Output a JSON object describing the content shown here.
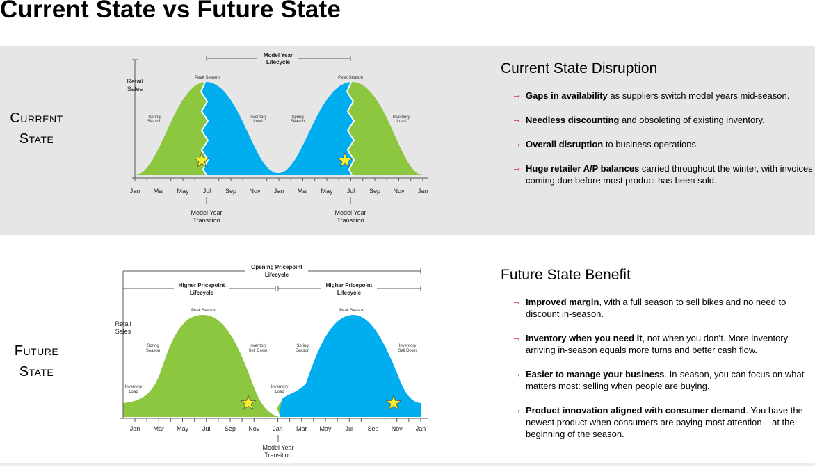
{
  "page": {
    "title": "Current State vs Future State"
  },
  "current": {
    "label_line1": "Current",
    "label_line2": "State",
    "chart": {
      "retail_sales_line1": "Retail",
      "retail_sales_line2": "Sales",
      "lifecycle_line1": "Model Year",
      "lifecycle_line2": "Lifecycle",
      "peak1": "Peak Season",
      "peak2": "Peak Season",
      "spring1_l1": "Spring",
      "spring1_l2": "Season",
      "inventory1_l1": "Inventory",
      "inventory1_l2": "Load",
      "spring2_l1": "Spring",
      "spring2_l2": "Season",
      "inventory2_l1": "Inventory",
      "inventory2_l2": "Load",
      "months": [
        "Jan",
        "Mar",
        "May",
        "Jul",
        "Sep",
        "Nov",
        "Jan",
        "Mar",
        "May",
        "Jul",
        "Sep",
        "Nov",
        "Jan"
      ],
      "transition1_l1": "Model Year",
      "transition1_l2": "Transition",
      "transition2_l1": "Model Year",
      "transition2_l2": "Transition"
    },
    "panel": {
      "heading": "Current State Disruption",
      "bullets": [
        {
          "bold": "Gaps in availability",
          "text": " as suppliers switch model years mid-season."
        },
        {
          "bold": "Needless discounting",
          "text": " and obsoleting of existing inventory."
        },
        {
          "bold": "Overall disruption",
          "text": " to business operations."
        },
        {
          "bold": "Huge retailer A/P balances",
          "text": " carried throughout the winter, with invoices coming due before most product has been sold."
        }
      ]
    }
  },
  "future": {
    "label_line1": "Future",
    "label_line2": "State",
    "chart": {
      "retail_sales_line1": "Retail",
      "retail_sales_line2": "Sales",
      "opening_line1": "Opening Pricepoint",
      "opening_line2": "Lifecycle",
      "higher1_line1": "Higher Pricepoint",
      "higher1_line2": "Lifecycle",
      "higher2_line1": "Higher Pricepoint",
      "higher2_line2": "Lifecycle",
      "peak1": "Peak Season",
      "peak2": "Peak Season",
      "spring1_l1": "Spring",
      "spring1_l2": "Season",
      "selldown1_l1": "Inventory",
      "selldown1_l2": "Sell Down",
      "spring2_l1": "Spring",
      "spring2_l2": "Season",
      "selldown2_l1": "Inventory",
      "selldown2_l2": "Sell Down",
      "invload1_l1": "Inventory",
      "invload1_l2": "Load",
      "invload2_l1": "Inventory",
      "invload2_l2": "Load",
      "months": [
        "Jan",
        "Mar",
        "May",
        "Jul",
        "Sep",
        "Nov",
        "Jan",
        "Mar",
        "May",
        "Jul",
        "Sep",
        "Nov",
        "Jan"
      ],
      "transition_l1": "Model Year",
      "transition_l2": "Transition"
    },
    "panel": {
      "heading": "Future State Benefit",
      "bullets": [
        {
          "bold": "Improved margin",
          "text": ", with a full season to sell bikes and no need to discount in-season."
        },
        {
          "bold": "Inventory when you need it",
          "text": ", not when you don’t.  More inventory arriving in-season equals more turns and better cash flow."
        },
        {
          "bold": "Easier to manage your business",
          "text": ".  In-season, you can focus on what matters most: selling when people are buying."
        },
        {
          "bold": "Product innovation aligned with consumer demand",
          "text": ".  You have the newest product when consumers are paying most attention – at the beginning of the season."
        }
      ]
    }
  },
  "colors": {
    "green": "#8dc63f",
    "blue": "#00aeef",
    "star": "#f4ef2a",
    "arrow": "#d9111b",
    "band": "#e6e6e6"
  },
  "icons": {
    "arrow": "right-arrow-icon",
    "star": "star-icon"
  }
}
